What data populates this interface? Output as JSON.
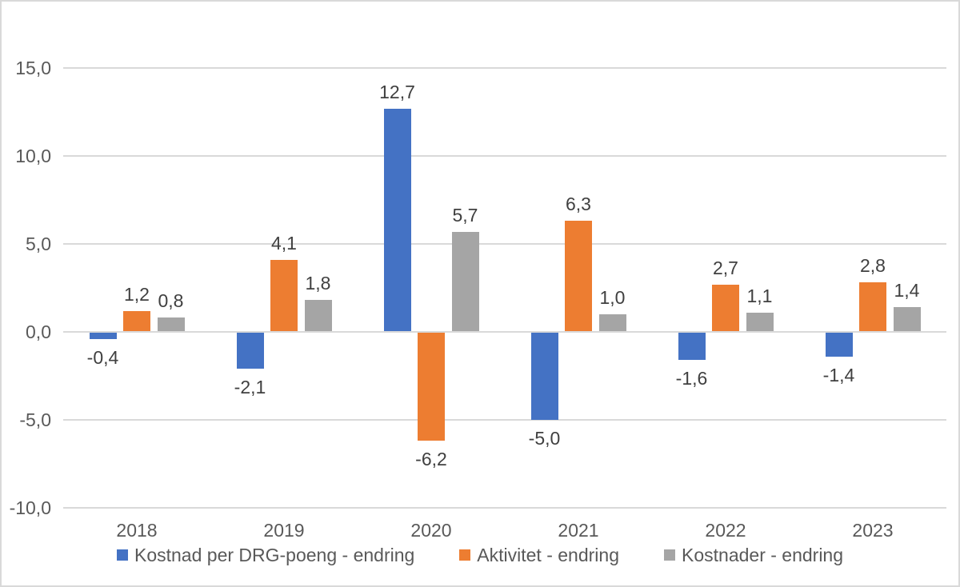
{
  "chart": {
    "background_color": "#ffffff",
    "border_color": "#d9d9d9",
    "grid_color": "#d9d9d9",
    "axis_text_color": "#595959",
    "data_label_color": "#404040"
  },
  "chart_data": {
    "type": "bar",
    "title": "",
    "xlabel": "",
    "ylabel": "",
    "categories": [
      "2018",
      "2019",
      "2020",
      "2021",
      "2022",
      "2023"
    ],
    "series": [
      {
        "name": "Kostnad per DRG-poeng - endring",
        "color": "#4472c4",
        "values": [
          -0.4,
          -2.1,
          12.7,
          -5.0,
          -1.6,
          -1.4
        ]
      },
      {
        "name": "Aktivitet - endring",
        "color": "#ed7d31",
        "values": [
          1.2,
          4.1,
          -6.2,
          6.3,
          2.7,
          2.8
        ]
      },
      {
        "name": "Kostnader - endring",
        "color": "#a5a5a5",
        "values": [
          0.8,
          1.8,
          5.7,
          1.0,
          1.1,
          1.4
        ]
      }
    ],
    "ylim": [
      -10,
      15
    ],
    "ytick_step": 5,
    "ytick_labels": [
      "15,0",
      "10,0",
      "5,0",
      "0,0",
      "-5,0",
      "-10,0"
    ],
    "decimal_separator": ",",
    "grid": true,
    "legend_position": "bottom",
    "data_labels": "outside-end"
  }
}
